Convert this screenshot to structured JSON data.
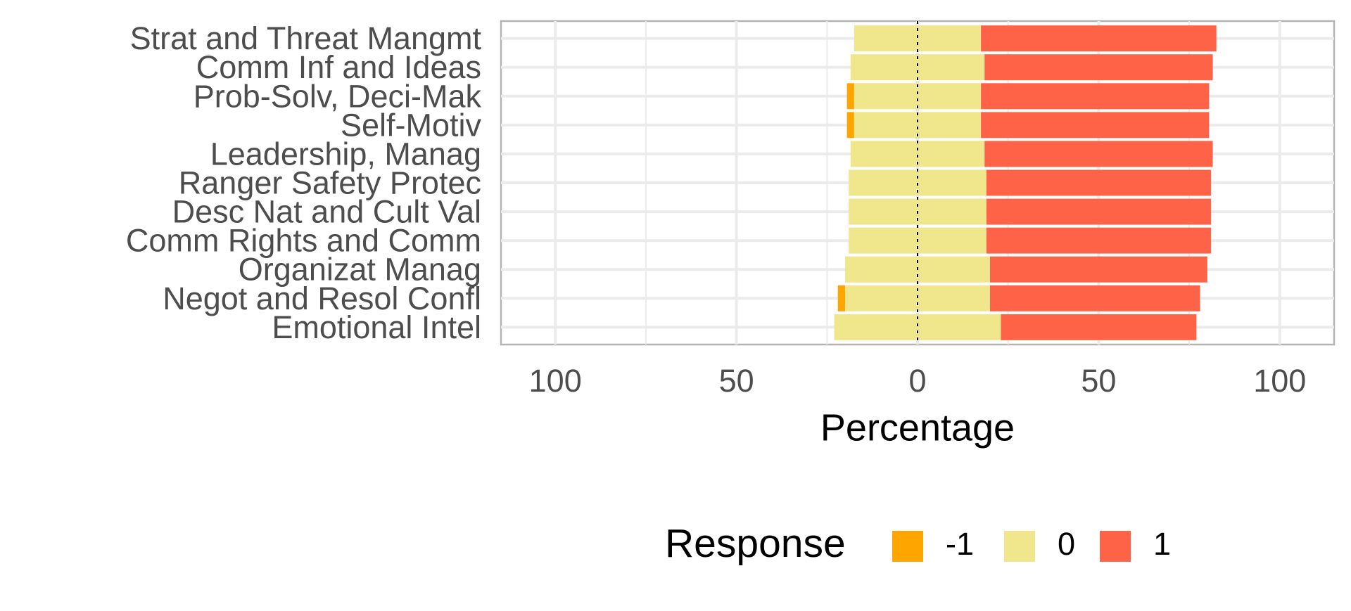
{
  "chart_data": {
    "type": "bar",
    "orientation": "horizontal",
    "stacked": "diverging",
    "title": "",
    "xlabel": "Percentage",
    "ylabel": "",
    "xlim": [
      -115,
      115
    ],
    "x_ticks": [
      -100,
      -50,
      0,
      50,
      100
    ],
    "x_tick_labels": [
      "100",
      "50",
      "0",
      "50",
      "100"
    ],
    "grid": true,
    "legend_position": "bottom",
    "legend_title": "Response",
    "categories": [
      "Strat and Threat Mangmt",
      "Comm Inf and Ideas",
      "Prob-Solv, Deci-Mak",
      "Self-Motiv",
      "Leadership, Manag",
      "Ranger Safety Protec",
      "Desc Nat and Cult Val",
      "Comm Rights and Comm",
      "Organizat Manag",
      "Negot and Resol Confl",
      "Emotional Intel"
    ],
    "series": [
      {
        "name": "-1",
        "color": "#FFA500",
        "values": [
          0,
          0,
          2,
          2,
          0,
          0,
          0,
          0,
          0,
          2,
          0
        ]
      },
      {
        "name": "0",
        "color": "#F0E68C",
        "values": [
          35,
          37,
          35,
          35,
          37,
          38,
          38,
          38,
          40,
          40,
          46
        ]
      },
      {
        "name": "1",
        "color": "#FF6347",
        "values": [
          65,
          63,
          63,
          63,
          63,
          62,
          62,
          62,
          60,
          58,
          54
        ]
      }
    ]
  }
}
